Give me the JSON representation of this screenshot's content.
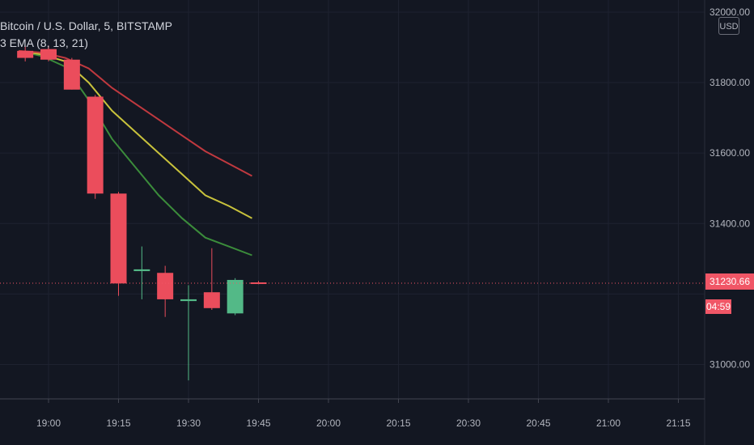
{
  "legend": {
    "symbol_line": "Bitcoin / U.S. Dollar, 5, BITSTAMP",
    "indicator_line": "3 EMA (8, 13, 21)"
  },
  "currency_badge": "USD",
  "last_price_label": "31230.66",
  "countdown_label": "04:59",
  "colors": {
    "background": "#131722",
    "up": "#53b987",
    "down": "#eb4d5c",
    "ema8": "#3b8c3b",
    "ema13": "#c8c23c",
    "ema21": "#c0393f",
    "grid": "#1e2230",
    "axis_text": "#b2b5be",
    "last_price_line": "#f05666"
  },
  "chart_data": {
    "type": "candlestick",
    "symbol": "Bitcoin / U.S. Dollar",
    "interval": "5",
    "exchange": "BITSTAMP",
    "ylim": [
      30850,
      32000
    ],
    "y_ticks": [
      32000,
      31800,
      31600,
      31400,
      31000
    ],
    "y_tick_labels": [
      "32000.00",
      "31800.00",
      "31600.00",
      "31400.00",
      "31000.00"
    ],
    "x_ticks": [
      "19:00",
      "19:15",
      "19:30",
      "19:45",
      "20:00",
      "20:15",
      "20:30",
      "20:45",
      "21:00",
      "21:15"
    ],
    "last_price": 31230.66,
    "candles": [
      {
        "time": "18:55",
        "open": 31890,
        "high": 31905,
        "low": 31860,
        "close": 31870
      },
      {
        "time": "19:00",
        "open": 31895,
        "high": 31905,
        "low": 31860,
        "close": 31865
      },
      {
        "time": "19:05",
        "open": 31865,
        "high": 31870,
        "low": 31780,
        "close": 31780
      },
      {
        "time": "19:10",
        "open": 31760,
        "high": 31765,
        "low": 31470,
        "close": 31485
      },
      {
        "time": "19:15",
        "open": 31485,
        "high": 31490,
        "low": 31195,
        "close": 31230
      },
      {
        "time": "19:20",
        "open": 31265,
        "high": 31335,
        "low": 31185,
        "close": 31270
      },
      {
        "time": "19:25",
        "open": 31260,
        "high": 31280,
        "low": 31135,
        "close": 31185
      },
      {
        "time": "19:30",
        "open": 31180,
        "high": 31225,
        "low": 30955,
        "close": 31185
      },
      {
        "time": "19:35",
        "open": 31205,
        "high": 31330,
        "low": 31155,
        "close": 31160
      },
      {
        "time": "19:40",
        "open": 31145,
        "high": 31245,
        "low": 31140,
        "close": 31240
      },
      {
        "time": "19:45",
        "open": 31233,
        "high": 31237,
        "low": 31228,
        "close": 31230.66
      }
    ],
    "ema_series": [
      {
        "name": "EMA 8",
        "color": "#3b8c3b",
        "values": [
          31890,
          31875,
          31845,
          31750,
          31640,
          31560,
          31480,
          31415,
          31360,
          31335,
          31310
        ]
      },
      {
        "name": "EMA 13",
        "color": "#c8c23c",
        "values": [
          31890,
          31880,
          31860,
          31800,
          31720,
          31660,
          31600,
          31540,
          31480,
          31450,
          31415
        ]
      },
      {
        "name": "EMA 21",
        "color": "#c0393f",
        "values": [
          31890,
          31885,
          31870,
          31840,
          31785,
          31740,
          31695,
          31650,
          31605,
          31570,
          31535
        ]
      }
    ]
  }
}
